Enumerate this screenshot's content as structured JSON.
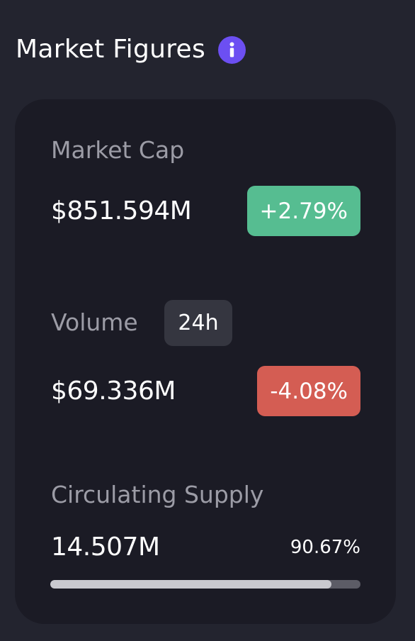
{
  "header": {
    "title": "Market Figures",
    "info_icon": "info-icon"
  },
  "market_cap": {
    "label": "Market Cap",
    "value": "$851.594M",
    "change": "+2.79%",
    "change_color": "#56bd91"
  },
  "volume": {
    "label": "Volume",
    "period": "24h",
    "value": "$69.336M",
    "change": "-4.08%",
    "change_color": "#d45d53"
  },
  "circulating_supply": {
    "label": "Circulating Supply",
    "value": "14.507M",
    "percent": "90.67%",
    "progress": 0.9067
  },
  "colors": {
    "background": "#23242f",
    "card": "#1b1b25",
    "accent": "#6c4ff2"
  }
}
